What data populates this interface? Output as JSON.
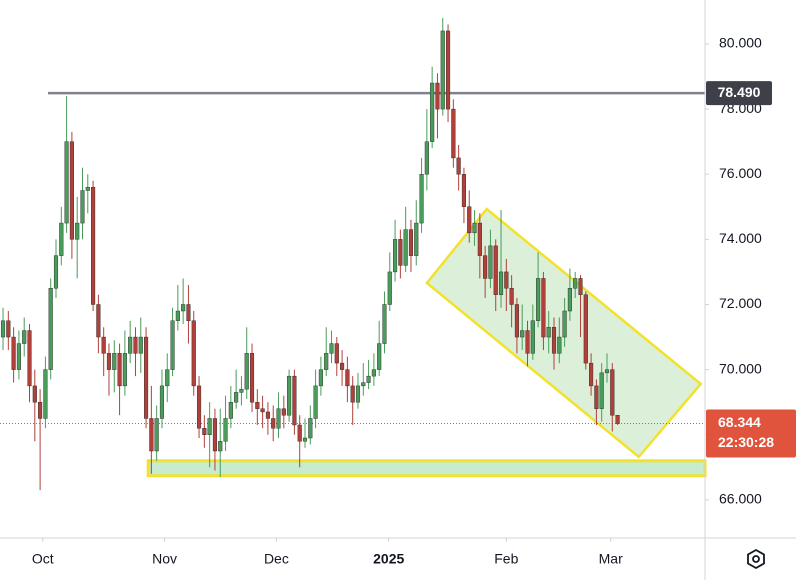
{
  "chart_data": {
    "type": "candlestick",
    "up_color": "#4a9c5a",
    "down_color": "#b0403a",
    "grid": false,
    "xlim": [
      -0.57,
      132.5
    ],
    "ylim": [
      64.86,
      81.35
    ],
    "xticks": [
      {
        "value": 7.5,
        "label": "Oct"
      },
      {
        "value": 30.5,
        "label": "Nov"
      },
      {
        "value": 51.6,
        "label": "Dec"
      },
      {
        "value": 72.8,
        "label": "2025"
      },
      {
        "value": 95,
        "label": "Feb"
      },
      {
        "value": 114.7,
        "label": "Mar"
      }
    ],
    "yticks": [
      {
        "value": 66,
        "label": "66.000"
      },
      {
        "value": 68,
        "label": "68.000"
      },
      {
        "value": 70,
        "label": "70.000"
      },
      {
        "value": 72,
        "label": "72.000"
      },
      {
        "value": 74,
        "label": "74.000"
      },
      {
        "value": 76,
        "label": "76.000"
      },
      {
        "value": 78,
        "label": "78.000"
      },
      {
        "value": 80,
        "label": "80.000"
      }
    ],
    "open": [
      71.0,
      71.5,
      71.0,
      70.0,
      70.8,
      71.2,
      69.5,
      69.0,
      68.5,
      70.0,
      72.5,
      73.5,
      74.5,
      77.0,
      74.0,
      74.5,
      75.5,
      75.6,
      72.0,
      71.0,
      70.5,
      70.0,
      70.5,
      69.5,
      70.5,
      71.0,
      70.5,
      71.0,
      68.5,
      67.5,
      68.5,
      69.5,
      70.0,
      71.5,
      71.8,
      72.0,
      71.5,
      69.5,
      68.2,
      68.0,
      68.5,
      67.5,
      67.8,
      68.5,
      69.0,
      69.3,
      69.4,
      70.5,
      69.0,
      68.8,
      68.7,
      68.5,
      68.2,
      68.8,
      68.6,
      69.8,
      68.3,
      67.8,
      67.9,
      68.5,
      69.5,
      70.0,
      70.5,
      70.8,
      70.2,
      70.0,
      69.5,
      69.0,
      69.5,
      69.6,
      69.8,
      70.0,
      70.8,
      72.0,
      73.0,
      74.0,
      73.2,
      74.3,
      73.5,
      74.5,
      76.0,
      77.0,
      78.8,
      78.0,
      80.4,
      78.0,
      76.5,
      76.0,
      75.0,
      74.2,
      74.5,
      73.5,
      72.8,
      73.8,
      72.3,
      73.0,
      72.5,
      72.0,
      71.0,
      71.2,
      70.5,
      71.5,
      72.8,
      71.0,
      71.3,
      70.5,
      71.0,
      71.8,
      72.5,
      72.8,
      72.3,
      70.2,
      69.5,
      68.8,
      69.9,
      70.0,
      68.6
    ],
    "high": [
      71.9,
      71.8,
      71.3,
      71.2,
      71.6,
      71.4,
      70.0,
      69.4,
      70.4,
      72.8,
      74.0,
      75.0,
      78.4,
      77.3,
      75.3,
      76.2,
      76.0,
      75.8,
      72.3,
      71.3,
      70.8,
      70.9,
      70.8,
      71.2,
      71.5,
      71.3,
      71.6,
      71.3,
      69.5,
      68.9,
      70.0,
      70.5,
      71.9,
      72.6,
      72.8,
      72.6,
      71.8,
      69.8,
      68.6,
      69.0,
      68.8,
      68.8,
      69.2,
      69.5,
      70.0,
      69.8,
      71.3,
      70.8,
      69.4,
      69.2,
      69.0,
      68.9,
      69.3,
      69.2,
      70.0,
      70.0,
      68.6,
      68.5,
      68.9,
      70.0,
      70.4,
      71.3,
      71.2,
      71.0,
      70.6,
      70.4,
      69.8,
      69.9,
      70.2,
      70.3,
      70.5,
      71.5,
      72.4,
      73.6,
      74.6,
      74.3,
      75.0,
      74.6,
      75.2,
      76.5,
      78.0,
      79.3,
      79.1,
      80.8,
      80.6,
      78.3,
      76.9,
      76.2,
      75.5,
      74.9,
      74.8,
      73.8,
      74.3,
      74.0,
      74.9,
      73.4,
      72.9,
      72.2,
      72.0,
      71.5,
      72.0,
      73.6,
      73.0,
      71.8,
      71.6,
      71.6,
      72.2,
      73.1,
      73.0,
      72.9,
      72.4,
      70.5,
      69.7,
      70.2,
      70.5,
      70.2,
      68.6
    ],
    "low": [
      70.6,
      70.6,
      69.6,
      69.7,
      70.4,
      69.0,
      67.8,
      66.3,
      68.2,
      69.7,
      72.2,
      73.2,
      74.2,
      73.4,
      72.8,
      74.0,
      74.8,
      71.8,
      70.5,
      69.8,
      69.2,
      69.3,
      68.6,
      69.2,
      70.2,
      69.8,
      69.9,
      68.2,
      66.8,
      67.2,
      68.2,
      69.0,
      69.8,
      71.2,
      71.4,
      70.8,
      69.2,
      67.9,
      67.6,
      67.0,
      66.9,
      66.7,
      67.5,
      68.2,
      68.8,
      68.9,
      69.1,
      68.7,
      68.3,
      68.2,
      68.0,
      67.8,
      67.9,
      68.2,
      68.4,
      68.0,
      67.0,
      67.6,
      67.7,
      68.2,
      69.2,
      69.8,
      70.2,
      69.8,
      69.5,
      69.0,
      68.3,
      68.8,
      69.2,
      69.4,
      69.5,
      69.8,
      70.5,
      71.8,
      72.7,
      72.8,
      73.0,
      73.0,
      73.2,
      74.2,
      75.5,
      76.8,
      77.1,
      77.8,
      77.6,
      76.2,
      75.5,
      74.5,
      73.9,
      73.8,
      72.8,
      72.2,
      72.5,
      71.8,
      71.9,
      71.8,
      71.3,
      70.5,
      70.6,
      70.1,
      70.3,
      71.3,
      70.6,
      70.5,
      70.0,
      70.2,
      70.7,
      71.5,
      72.2,
      71.0,
      70.0,
      69.2,
      68.3,
      68.4,
      69.6,
      68.1,
      68.3
    ],
    "close": [
      71.5,
      71.0,
      70.0,
      70.8,
      71.2,
      69.5,
      69.0,
      68.5,
      70.0,
      72.5,
      73.5,
      74.5,
      77.0,
      74.0,
      74.5,
      75.5,
      75.6,
      72.0,
      71.0,
      70.5,
      70.0,
      70.5,
      69.5,
      70.5,
      71.0,
      70.5,
      71.0,
      68.5,
      67.5,
      68.5,
      69.5,
      70.0,
      71.5,
      71.8,
      72.0,
      71.5,
      69.5,
      68.2,
      68.0,
      68.5,
      67.5,
      67.8,
      68.5,
      69.0,
      69.3,
      69.4,
      70.5,
      69.0,
      68.8,
      68.7,
      68.5,
      68.2,
      68.8,
      68.6,
      69.8,
      68.3,
      67.8,
      67.9,
      68.5,
      69.5,
      70.0,
      70.5,
      70.8,
      70.2,
      70.0,
      69.5,
      69.0,
      69.5,
      69.6,
      69.8,
      70.0,
      70.8,
      72.0,
      73.0,
      74.0,
      73.2,
      74.3,
      73.5,
      74.5,
      76.0,
      77.0,
      78.8,
      78.0,
      80.4,
      78.0,
      76.5,
      76.0,
      75.0,
      74.2,
      74.5,
      73.5,
      72.8,
      73.8,
      72.3,
      73.0,
      72.5,
      72.0,
      71.0,
      71.2,
      70.5,
      71.5,
      72.8,
      71.0,
      71.3,
      70.5,
      71.0,
      71.8,
      72.5,
      72.8,
      72.3,
      70.2,
      69.5,
      68.8,
      69.9,
      70.0,
      68.6,
      68.344
    ],
    "level_line": {
      "value": 78.49,
      "label": "78.490",
      "x_start": 8.5,
      "color": "#80828e"
    },
    "last_price": {
      "value": 68.344,
      "label": "68.344",
      "countdown": "22:30:28",
      "color": "#e0533d"
    },
    "channel": {
      "x": [
        80.0,
        91.3,
        131.7,
        120.0
      ],
      "y": [
        72.66,
        74.93,
        69.56,
        67.32
      ],
      "fill": "#d6ecd2",
      "stroke": "#f2e22c"
    },
    "zone": {
      "x_start": 27.4,
      "top": 67.2,
      "bottom": 66.74,
      "fill": "#c8ecd0",
      "stroke": "#f2e22c"
    }
  }
}
